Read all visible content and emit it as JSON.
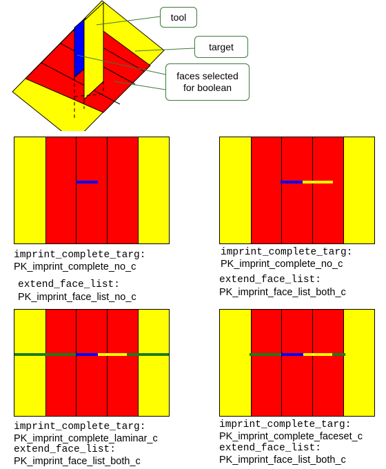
{
  "callouts": {
    "tool": "tool",
    "target": "target",
    "faces_line1": "faces selected",
    "faces_line2": "for boolean"
  },
  "colors": {
    "yellow": "#ffff00",
    "red": "#ff0000",
    "blue": "#0000ff",
    "green": "#1e7b1e",
    "callout_border": "#3a7a3a"
  },
  "panels": [
    {
      "label1": "imprint_complete_targ:",
      "value1": "PK_imprint_complete_no_c",
      "label2": "extend_face_list:",
      "value2": "PK_imprint_face_list_no_c"
    },
    {
      "label1": "imprint_complete_targ:",
      "value1": "PK_imprint_complete_no_c",
      "label2": "extend_face_list:",
      "value2": "PK_imprint_face_list_both_c"
    },
    {
      "label1": "imprint_complete_targ:",
      "value1": "PK_imprint_complete_laminar_c",
      "label2": "extend_face_list:",
      "value2": "PK_imprint_face_list_both_c"
    },
    {
      "label1": "imprint_complete_targ:",
      "value1": "PK_imprint_complete_faceset_c",
      "label2": "extend_face_list:",
      "value2": "PK_imprint_face_list_both_c"
    }
  ]
}
